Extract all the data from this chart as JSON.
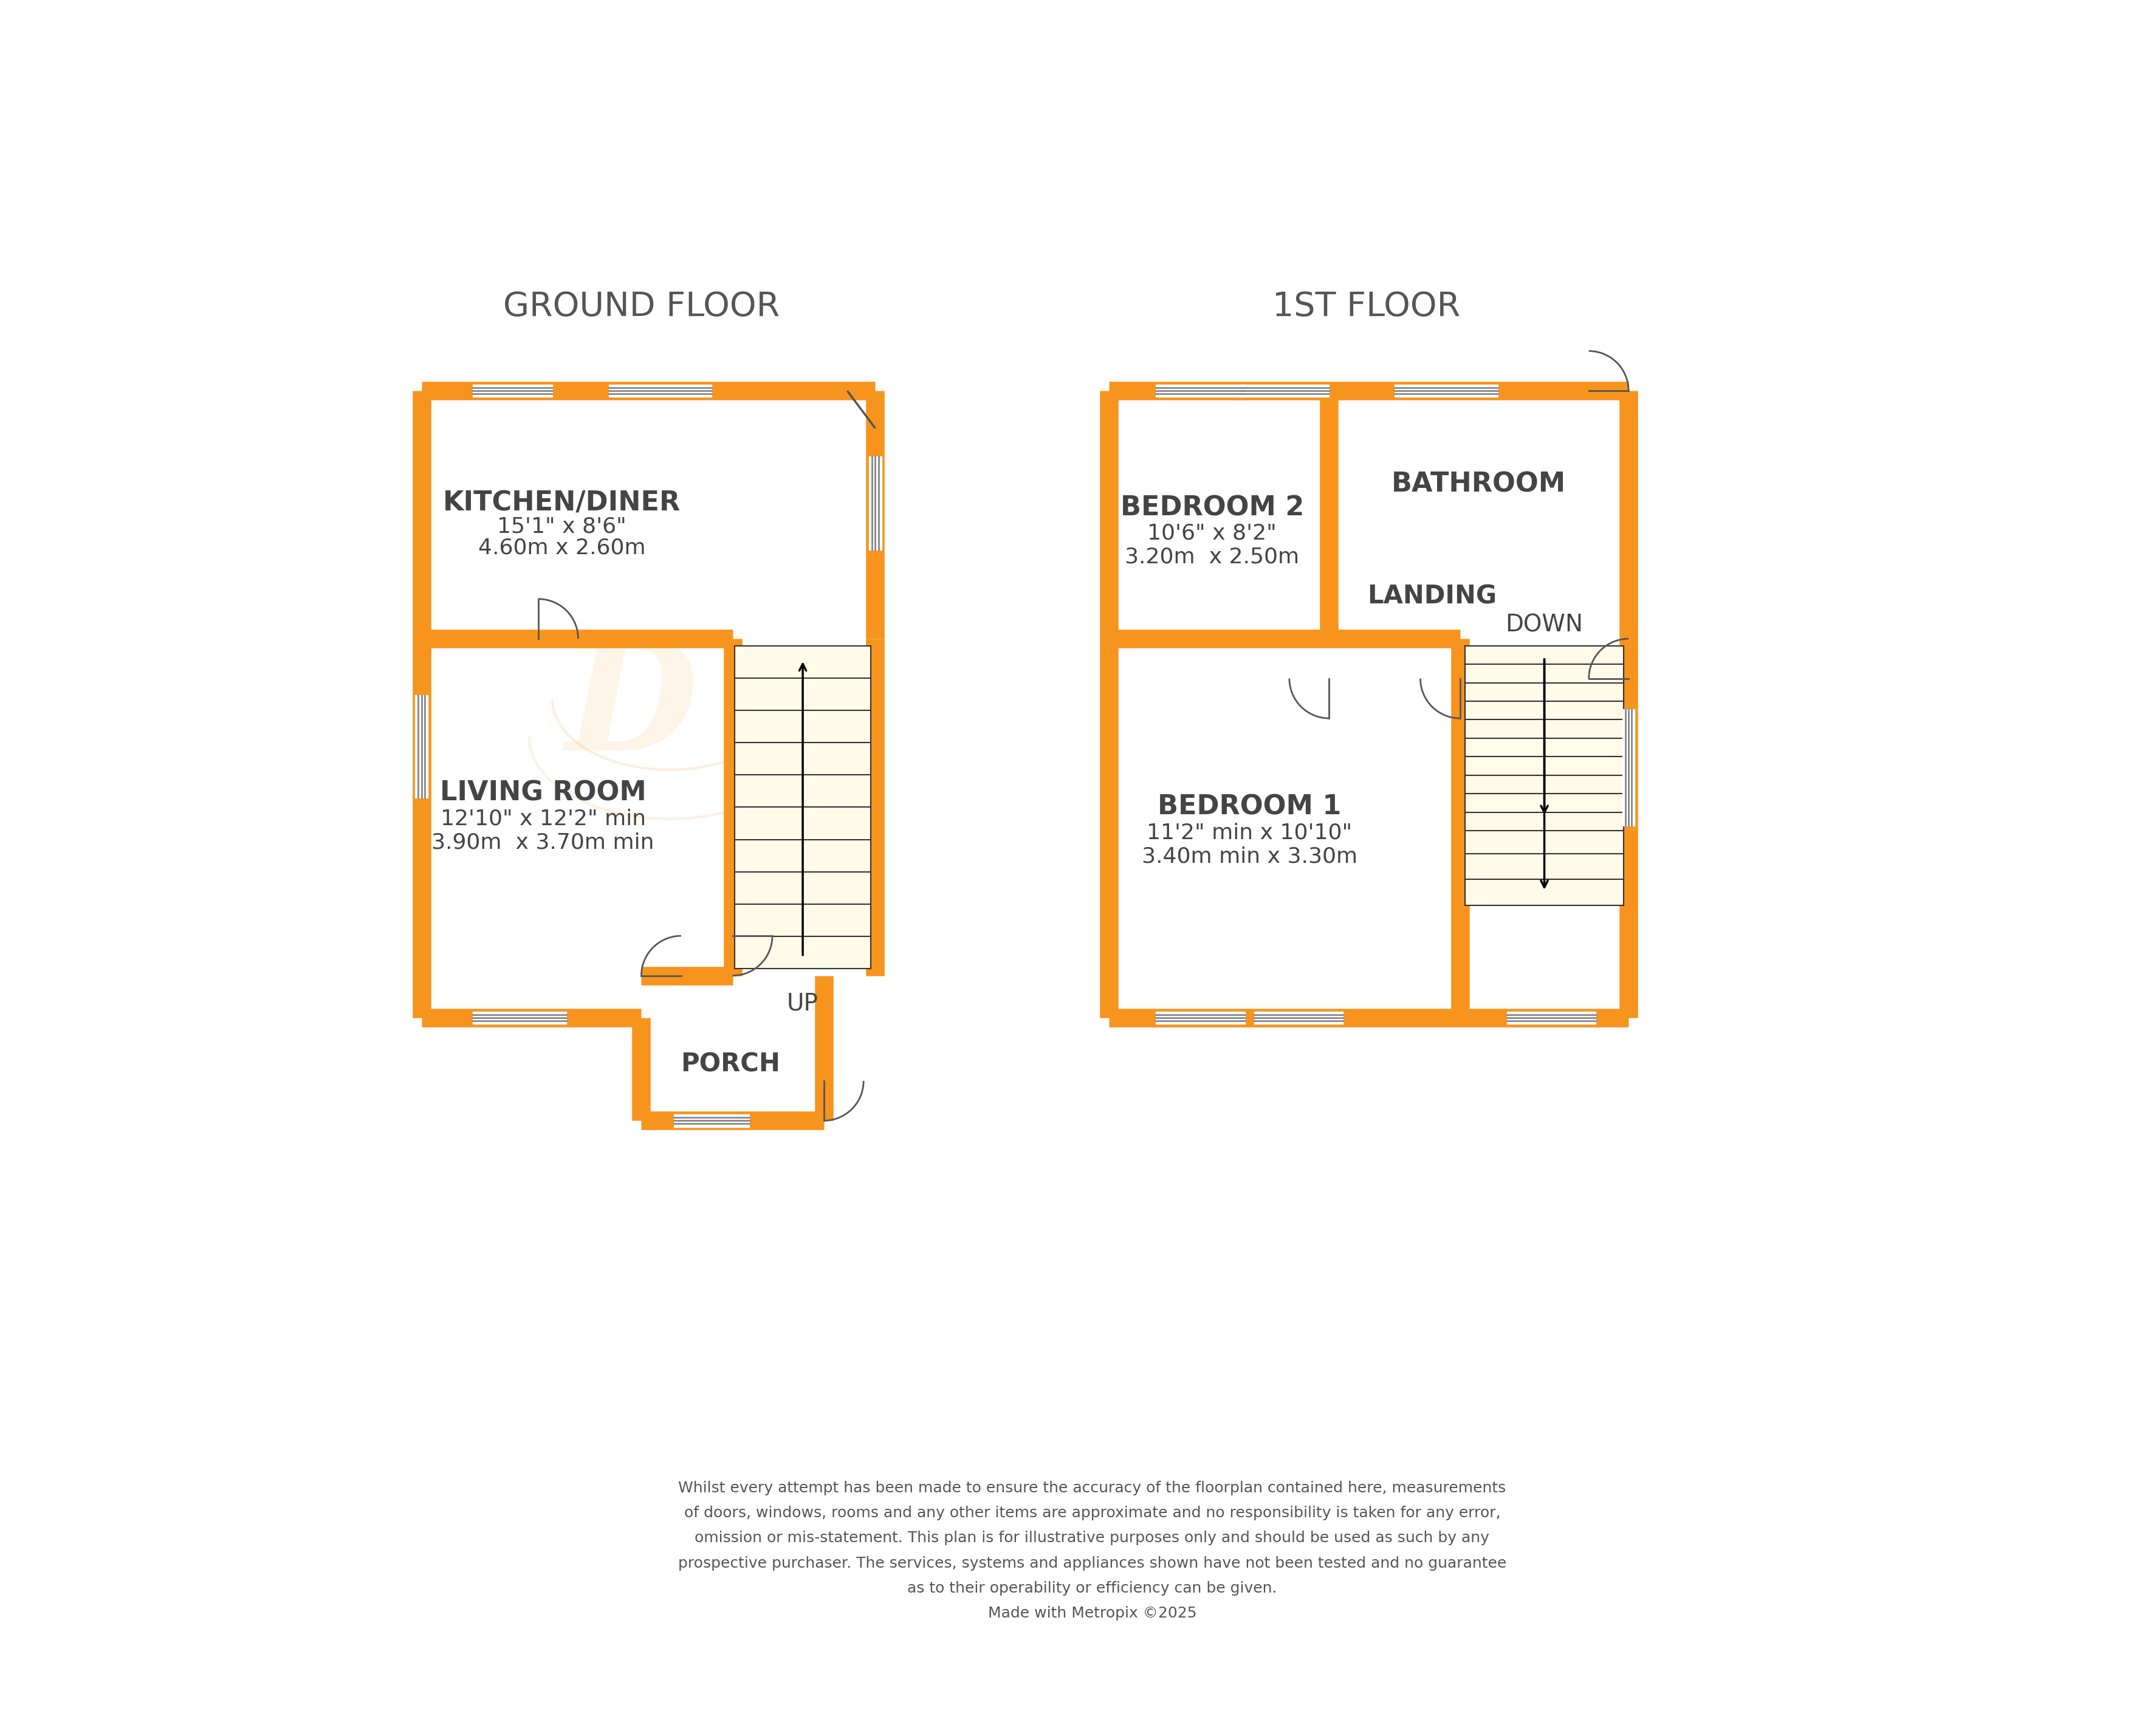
{
  "bg_color": "#ffffff",
  "wall_color": "#f7941d",
  "line_color": "#555555",
  "text_color": "#444444",
  "header_color": "#555555",
  "disclaimer_text": "Whilst every attempt has been made to ensure the accuracy of the floorplan contained here, measurements\nof doors, windows, rooms and any other items are approximate and no responsibility is taken for any error,\nomission or mis-statement. This plan is for illustrative purposes only and should be used as such by any\nprospective purchaser. The services, systems and appliances shown have not been tested and no guarantee\nas to their operability or efficiency can be given.\nMade with Metropix ©2025",
  "ground_floor_label": "GROUND FLOOR",
  "first_floor_label": "1ST FLOOR",
  "kitchen_label": "KITCHEN/DINER",
  "kitchen_sub1": "15'1\" x 8'6\"",
  "kitchen_sub2": "4.60m x 2.60m",
  "living_label": "LIVING ROOM",
  "living_sub1": "12'10\" x 12'2\" min",
  "living_sub2": "3.90m  x 3.70m min",
  "porch_label": "PORCH",
  "up_label": "UP",
  "down_label": "DOWN",
  "bed1_label": "BEDROOM 1",
  "bed1_sub1": "11'2\" min x 10'10\"",
  "bed1_sub2": "3.40m min x 3.30m",
  "bed2_label": "BEDROOM 2",
  "bed2_sub1": "10'6\" x 8'2\"",
  "bed2_sub2": "3.20m  x 2.50m",
  "bathroom_label": "BATHROOM",
  "landing_label": "LANDING"
}
